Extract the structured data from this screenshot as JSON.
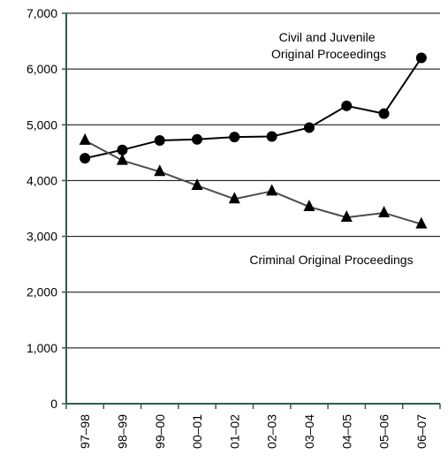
{
  "chart_data": {
    "type": "line",
    "title": "",
    "xlabel": "",
    "ylabel": "",
    "categories": [
      "97–98",
      "98–99",
      "99–00",
      "00–01",
      "01–02",
      "02–03",
      "03–04",
      "04–05",
      "05–06",
      "06–07"
    ],
    "ylim": [
      0,
      7000
    ],
    "yticks": [
      0,
      1000,
      2000,
      3000,
      4000,
      5000,
      6000,
      7000
    ],
    "ytick_labels": [
      "0",
      "1,000",
      "2,000",
      "3,000",
      "4,000",
      "5,000",
      "6,000",
      "7,000"
    ],
    "grid": "horizontal",
    "legend": "none",
    "series": [
      {
        "key": "civil",
        "marker": "circle",
        "color": "#000000",
        "values": [
          4400,
          4550,
          4720,
          4740,
          4780,
          4790,
          4950,
          5340,
          5200,
          6200
        ]
      },
      {
        "key": "criminal",
        "marker": "triangle",
        "color": "#4d4d4d",
        "values": [
          4720,
          4360,
          4160,
          3910,
          3670,
          3810,
          3530,
          3340,
          3420,
          3220
        ]
      }
    ],
    "annotations": [
      {
        "series": "civil",
        "lines": [
          "Civil and Juvenile",
          "Original Proceedings"
        ]
      },
      {
        "series": "criminal",
        "lines": [
          "Criminal Original Proceedings"
        ]
      }
    ],
    "axis_color": "#2e5e4e"
  }
}
